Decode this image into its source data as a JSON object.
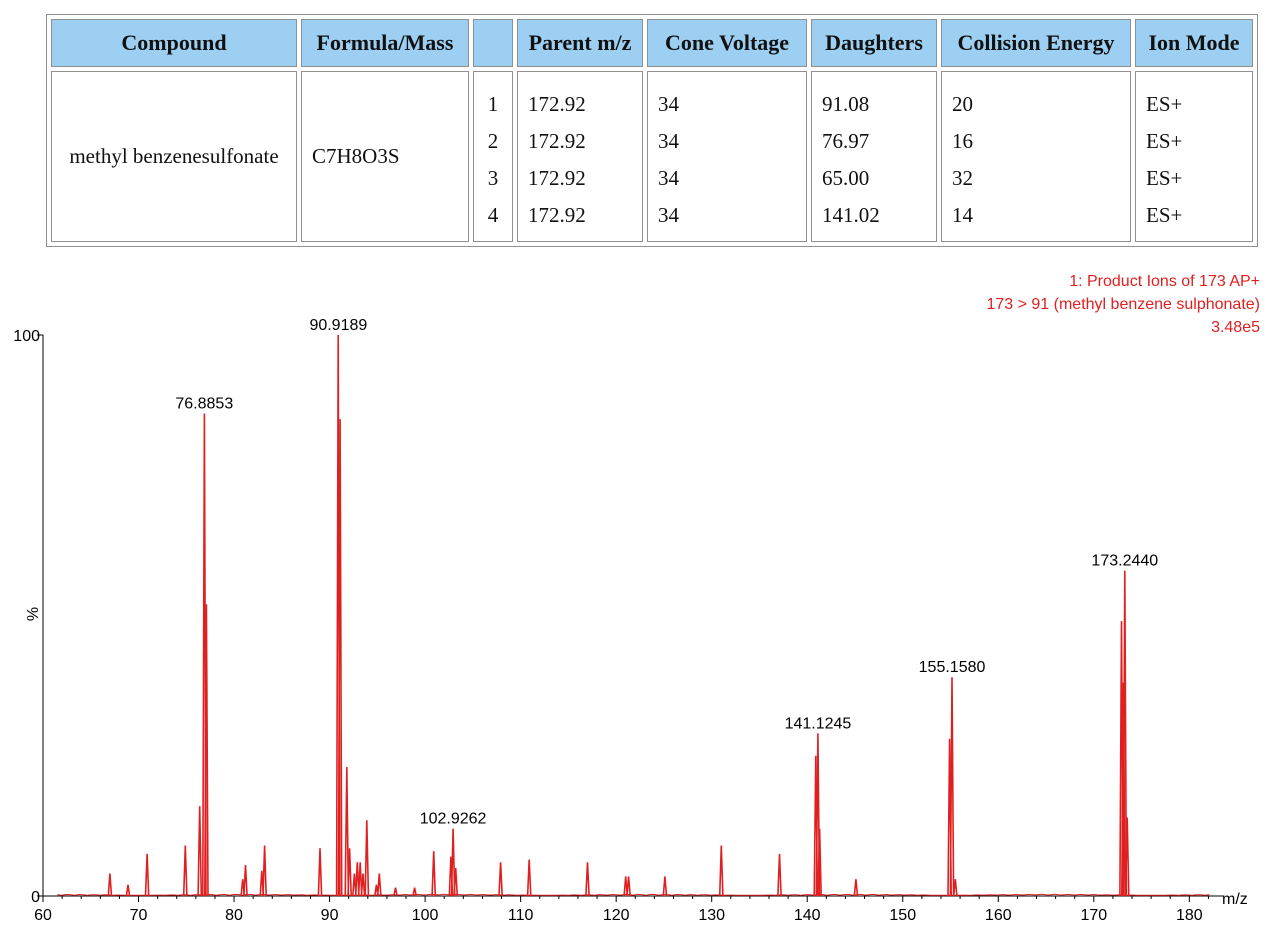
{
  "table": {
    "headers": [
      "Compound",
      "Formula/Mass",
      "",
      "Parent m/z",
      "Cone Voltage",
      "Daughters",
      "Collision Energy",
      "Ion Mode"
    ],
    "compound": "methyl benzenesulfonate",
    "formula": "C7H8O3S",
    "transitions": [
      {
        "index": "1",
        "parent": "172.92",
        "cone": "34",
        "daughter": "91.08",
        "ce": "20",
        "mode": "ES+"
      },
      {
        "index": "2",
        "parent": "172.92",
        "cone": "34",
        "daughter": "76.97",
        "ce": "16",
        "mode": "ES+"
      },
      {
        "index": "3",
        "parent": "172.92",
        "cone": "34",
        "daughter": "65.00",
        "ce": "32",
        "mode": "ES+"
      },
      {
        "index": "4",
        "parent": "172.92",
        "cone": "34",
        "daughter": "141.02",
        "ce": "14",
        "mode": "ES+"
      }
    ]
  },
  "chart_data": {
    "type": "line",
    "title_lines": [
      "1: Product Ions of 173 AP+",
      "173 > 91 (methyl benzene sulphonate)",
      "3.48e5"
    ],
    "xlabel": "m/z",
    "ylabel": "%",
    "xlim": [
      60,
      183
    ],
    "ylim": [
      0,
      100
    ],
    "x_ticks": [
      60,
      70,
      80,
      90,
      100,
      110,
      120,
      130,
      140,
      150,
      160,
      170,
      180
    ],
    "y_tick_labels": [
      "100",
      "0"
    ],
    "grid": false,
    "color": "#e02020",
    "peak_labels": [
      {
        "x": 76.8853,
        "y": 86,
        "label": "76.8853"
      },
      {
        "x": 90.9189,
        "y": 100,
        "label": "90.9189"
      },
      {
        "x": 102.9262,
        "y": 12,
        "label": "102.9262"
      },
      {
        "x": 141.1245,
        "y": 29,
        "label": "141.1245"
      },
      {
        "x": 155.158,
        "y": 39,
        "label": "155.1580"
      },
      {
        "x": 173.244,
        "y": 58,
        "label": "173.2440"
      }
    ],
    "peaks": [
      {
        "x": 67.0,
        "y": 4
      },
      {
        "x": 68.9,
        "y": 2
      },
      {
        "x": 70.9,
        "y": 7.5
      },
      {
        "x": 74.9,
        "y": 9
      },
      {
        "x": 76.4,
        "y": 16
      },
      {
        "x": 76.9,
        "y": 86
      },
      {
        "x": 77.1,
        "y": 52
      },
      {
        "x": 80.9,
        "y": 3
      },
      {
        "x": 81.2,
        "y": 5.5
      },
      {
        "x": 82.9,
        "y": 4.5
      },
      {
        "x": 83.2,
        "y": 9
      },
      {
        "x": 89.0,
        "y": 8.5
      },
      {
        "x": 90.9,
        "y": 100
      },
      {
        "x": 91.1,
        "y": 85
      },
      {
        "x": 91.8,
        "y": 23
      },
      {
        "x": 92.1,
        "y": 8.5
      },
      {
        "x": 92.6,
        "y": 4
      },
      {
        "x": 92.9,
        "y": 6
      },
      {
        "x": 93.2,
        "y": 6
      },
      {
        "x": 93.5,
        "y": 4
      },
      {
        "x": 93.9,
        "y": 13.5
      },
      {
        "x": 94.9,
        "y": 2
      },
      {
        "x": 95.2,
        "y": 4
      },
      {
        "x": 96.9,
        "y": 1.5
      },
      {
        "x": 98.9,
        "y": 1.5
      },
      {
        "x": 100.9,
        "y": 8
      },
      {
        "x": 102.7,
        "y": 7
      },
      {
        "x": 102.93,
        "y": 12
      },
      {
        "x": 103.2,
        "y": 5
      },
      {
        "x": 107.9,
        "y": 6
      },
      {
        "x": 110.9,
        "y": 6.5
      },
      {
        "x": 117.0,
        "y": 6
      },
      {
        "x": 121.0,
        "y": 3.5
      },
      {
        "x": 121.3,
        "y": 3.5
      },
      {
        "x": 125.1,
        "y": 3.5
      },
      {
        "x": 131.0,
        "y": 9
      },
      {
        "x": 137.1,
        "y": 7.5
      },
      {
        "x": 140.9,
        "y": 25
      },
      {
        "x": 141.12,
        "y": 29
      },
      {
        "x": 141.3,
        "y": 12
      },
      {
        "x": 145.1,
        "y": 3
      },
      {
        "x": 154.9,
        "y": 28
      },
      {
        "x": 155.16,
        "y": 39
      },
      {
        "x": 155.5,
        "y": 3
      },
      {
        "x": 172.9,
        "y": 49
      },
      {
        "x": 173.1,
        "y": 38
      },
      {
        "x": 173.24,
        "y": 58
      },
      {
        "x": 173.5,
        "y": 14
      }
    ]
  }
}
